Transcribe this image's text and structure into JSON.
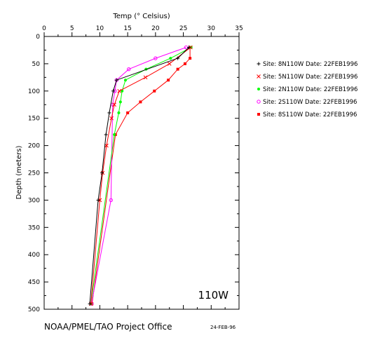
{
  "chart_data": {
    "type": "line",
    "title": "",
    "xlabel": "Temp (° Celsius)",
    "ylabel": "Depth (meters)",
    "xlim": [
      0,
      35
    ],
    "ylim": [
      500,
      0
    ],
    "x_ticks": [
      0,
      5,
      10,
      15,
      20,
      25,
      30,
      35
    ],
    "y_ticks": [
      0,
      50,
      100,
      150,
      200,
      250,
      300,
      350,
      400,
      450,
      500
    ],
    "grid": false,
    "legend_position": "right",
    "annotation": "110W",
    "series": [
      {
        "name": "Site: 8N110W Date: 22FEB1996",
        "color": "#000000",
        "marker": "cross",
        "points": [
          [
            26.0,
            20
          ],
          [
            24.0,
            40
          ],
          [
            13.0,
            80
          ],
          [
            12.4,
            100
          ],
          [
            11.7,
            140
          ],
          [
            11.1,
            180
          ],
          [
            10.4,
            250
          ],
          [
            9.7,
            300
          ],
          [
            8.2,
            490
          ]
        ]
      },
      {
        "name": "Site: 5N110W Date: 22FEB1996",
        "color": "#ff0000",
        "marker": "x",
        "points": [
          [
            26.3,
            20
          ],
          [
            22.5,
            50
          ],
          [
            18.2,
            75
          ],
          [
            13.5,
            100
          ],
          [
            12.6,
            125
          ],
          [
            12.1,
            150
          ],
          [
            11.2,
            200
          ],
          [
            10.5,
            250
          ],
          [
            10.0,
            300
          ],
          [
            8.4,
            490
          ]
        ]
      },
      {
        "name": "Site: 2N110W Date: 22FEB1996",
        "color": "#00ff00",
        "marker": "dot",
        "points": [
          [
            26.4,
            20
          ],
          [
            22.7,
            40
          ],
          [
            18.3,
            60
          ],
          [
            14.6,
            80
          ],
          [
            14.0,
            100
          ],
          [
            13.7,
            120
          ],
          [
            13.4,
            140
          ],
          [
            12.6,
            180
          ],
          [
            8.4,
            490
          ]
        ]
      },
      {
        "name": "Site: 2S110W Date: 22FEB1996",
        "color": "#ff00ff",
        "marker": "circle",
        "points": [
          [
            25.5,
            20
          ],
          [
            20.0,
            40
          ],
          [
            15.2,
            60
          ],
          [
            13.0,
            80
          ],
          [
            12.7,
            100
          ],
          [
            12.3,
            125
          ],
          [
            12.0,
            300
          ],
          [
            8.5,
            490
          ]
        ]
      },
      {
        "name": "Site: 8S110W Date: 22FEB1996",
        "color": "#ff0000",
        "marker": "square",
        "points": [
          [
            26.2,
            20
          ],
          [
            26.2,
            40
          ],
          [
            25.3,
            50
          ],
          [
            24.0,
            60
          ],
          [
            22.3,
            80
          ],
          [
            19.8,
            100
          ],
          [
            17.3,
            120
          ],
          [
            15.0,
            140
          ],
          [
            12.8,
            180
          ],
          [
            8.6,
            490
          ]
        ]
      }
    ]
  },
  "footer": {
    "organization": "NOAA/PMEL/TAO Project Office",
    "date": "24-FEB-96"
  }
}
